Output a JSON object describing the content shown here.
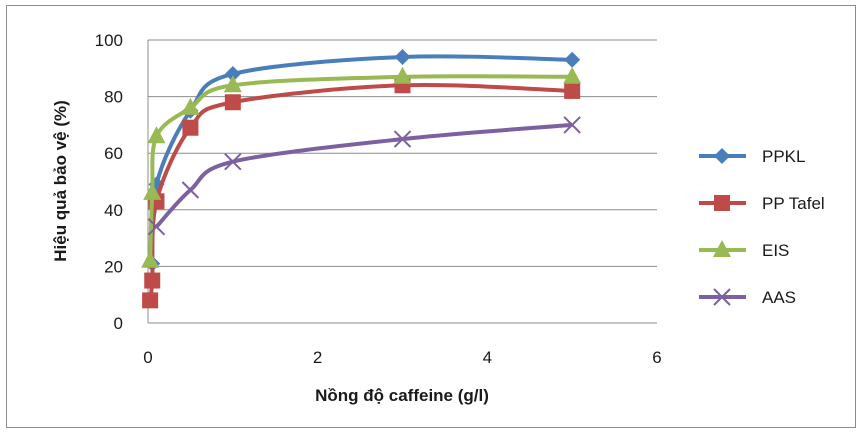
{
  "chart_data": {
    "type": "scatter",
    "xlabel": "Nồng độ caffeine (g/l)",
    "ylabel": "Hiệu quả bảo vệ (%)",
    "xlim": [
      0,
      6
    ],
    "ylim": [
      0,
      100
    ],
    "xticks": [
      "0",
      "2",
      "4",
      "6"
    ],
    "yticks": [
      "0",
      "20",
      "40",
      "60",
      "80",
      "100"
    ],
    "grid": "horizontal",
    "legend_position": "right",
    "series": [
      {
        "name": "PPKL",
        "color": "#4a7ebb",
        "marker": "diamond",
        "x": [
          0.05,
          0.1,
          0.5,
          1,
          3,
          5
        ],
        "y": [
          21,
          49,
          75,
          88,
          94,
          93
        ]
      },
      {
        "name": "PP Tafel",
        "color": "#be4b48",
        "marker": "square",
        "x": [
          0.025,
          0.05,
          0.1,
          0.5,
          1,
          3,
          5
        ],
        "y": [
          8,
          15,
          43,
          69,
          78,
          84,
          82
        ]
      },
      {
        "name": "EIS",
        "color": "#98b954",
        "marker": "triangle",
        "x": [
          0.025,
          0.05,
          0.1,
          0.5,
          1,
          3,
          5
        ],
        "y": [
          22,
          46,
          66,
          76,
          84,
          87,
          87
        ]
      },
      {
        "name": "AAS",
        "color": "#7d60a0",
        "marker": "x",
        "x": [
          0.1,
          0.5,
          1,
          3,
          5
        ],
        "y": [
          34,
          47,
          57,
          65,
          70
        ]
      }
    ]
  }
}
